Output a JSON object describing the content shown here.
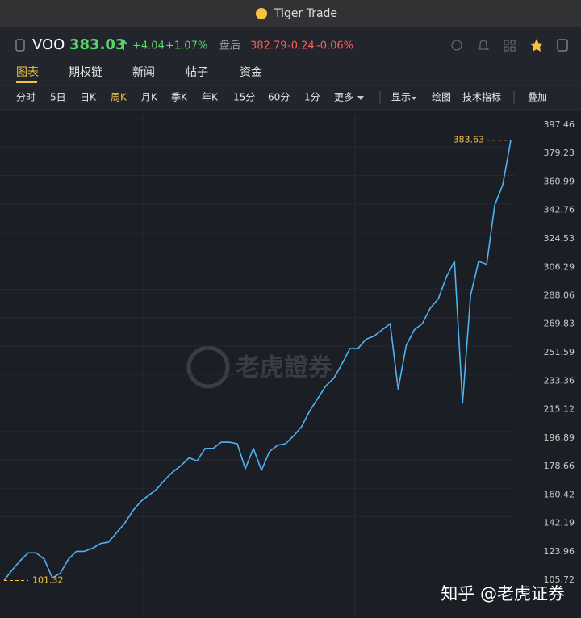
{
  "window": {
    "title": "Tiger Trade"
  },
  "quote": {
    "symbol": "VOO",
    "price": 383.03,
    "change": "+4.04",
    "change_pct": "+1.07%",
    "after_hours_label": "盘后",
    "after_price": 382.79,
    "after_change": "-0.24",
    "after_change_pct": "-0.06%"
  },
  "tabs": [
    "图表",
    "期权链",
    "新闻",
    "帖子",
    "资金"
  ],
  "active_tab": 0,
  "periods": [
    "分时",
    "5日",
    "日K",
    "周K",
    "月K",
    "季K",
    "年K",
    "15分",
    "60分",
    "1分"
  ],
  "active_period": 3,
  "tools": [
    "更多",
    "显示",
    "绘图",
    "技术指标",
    "叠加"
  ],
  "watermark": "老虎證券",
  "footer": "知乎 @老虎证券",
  "chart_data": {
    "type": "line",
    "color": "#4fb3ef",
    "grid": true,
    "values": [
      101.32,
      108,
      114,
      119,
      119,
      115,
      103,
      106,
      115,
      120,
      120,
      122,
      125,
      126,
      132,
      138,
      146,
      152,
      156,
      160,
      166,
      171,
      175,
      180,
      178,
      186,
      186,
      190,
      190,
      189,
      173,
      186,
      172,
      184,
      188,
      189,
      194,
      200,
      210,
      218,
      226,
      231,
      240,
      250,
      250,
      256,
      258,
      262,
      266,
      224,
      252,
      262,
      266,
      276,
      282,
      296,
      306,
      215,
      284,
      306,
      304,
      342,
      355,
      383.63
    ],
    "ylim": [
      77.28,
      401.08
    ],
    "yticks": [
      397.46,
      379.23,
      360.99,
      342.76,
      324.53,
      306.29,
      288.06,
      269.83,
      251.59,
      233.36,
      215.12,
      196.89,
      178.66,
      160.42,
      142.19,
      123.96,
      105.72
    ],
    "high": 383.63,
    "low": 101.32,
    "marker_color": "#f5c242"
  }
}
